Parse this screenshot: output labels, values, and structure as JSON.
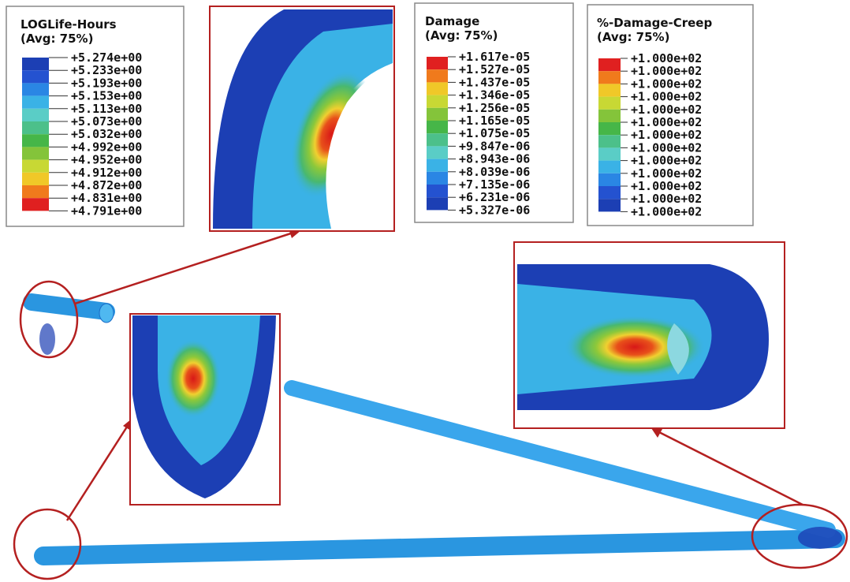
{
  "legends": [
    {
      "title": "LOGLife-Hours",
      "subtitle": "(Avg: 75%)",
      "labels": [
        "+5.274e+00",
        "+5.233e+00",
        "+5.193e+00",
        "+5.153e+00",
        "+5.113e+00",
        "+5.073e+00",
        "+5.032e+00",
        "+4.992e+00",
        "+4.952e+00",
        "+4.912e+00",
        "+4.872e+00",
        "+4.831e+00",
        "+4.791e+00"
      ]
    },
    {
      "title": "Damage",
      "subtitle": "(Avg: 75%)",
      "labels": [
        "+1.617e-05",
        "+1.527e-05",
        "+1.437e-05",
        "+1.346e-05",
        "+1.256e-05",
        "+1.165e-05",
        "+1.075e-05",
        "+9.847e-06",
        "+8.943e-06",
        "+8.039e-06",
        "+7.135e-06",
        "+6.231e-06",
        "+5.327e-06"
      ]
    },
    {
      "title": "%-Damage-Creep",
      "subtitle": "(Avg: 75%)",
      "labels": [
        "+1.000e+02",
        "+1.000e+02",
        "+1.000e+02",
        "+1.000e+02",
        "+1.000e+02",
        "+1.000e+02",
        "+1.000e+02",
        "+1.000e+02",
        "+1.000e+02",
        "+1.000e+02",
        "+1.000e+02",
        "+1.000e+02",
        "+1.000e+02"
      ]
    }
  ]
}
